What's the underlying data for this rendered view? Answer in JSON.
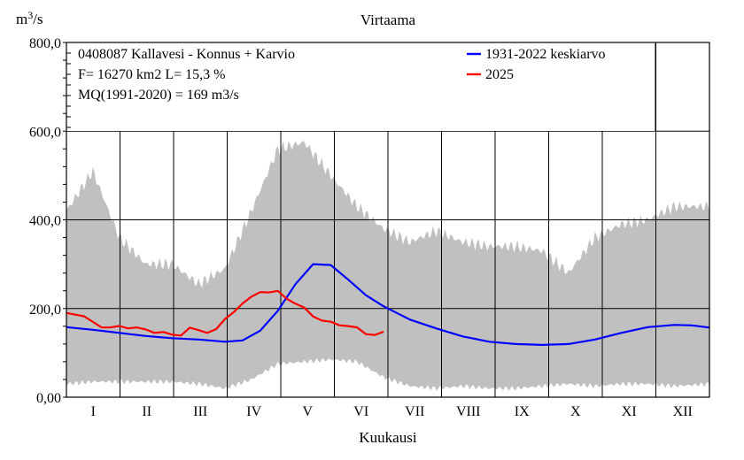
{
  "chart_data": {
    "type": "area",
    "title": "Virtaama",
    "ylabel": "m3/s",
    "ylabel_parts": {
      "base": "m",
      "sup": "3",
      "rest": "/s"
    },
    "xlabel": "Kuukausi",
    "ylim": [
      0,
      800
    ],
    "yticks": [
      "0,00",
      "200,0",
      "400,0",
      "600,0",
      "800,0"
    ],
    "months": [
      "I",
      "II",
      "III",
      "IV",
      "V",
      "VI",
      "VII",
      "VIII",
      "IX",
      "X",
      "XI",
      "XII"
    ],
    "grid": true,
    "info_lines": [
      "0408087 Kallavesi - Konnus + Karvio",
      "F=  16270 km2 L=  15,3 %",
      "MQ(1991-2020) = 169 m3/s"
    ],
    "legend": {
      "placement": "top-right",
      "entries": [
        {
          "label": "1931-2022 keskiarvo",
          "color": "#0000ff"
        },
        {
          "label": "2025",
          "color": "#ff0000"
        }
      ]
    },
    "range_band": {
      "color": "#c0c0c0",
      "day": [
        0,
        15,
        30,
        45,
        60,
        75,
        90,
        105,
        120,
        135,
        150,
        165,
        180,
        195,
        210,
        225,
        240,
        255,
        270,
        285,
        300,
        315,
        330,
        345,
        365
      ],
      "max": [
        420,
        510,
        360,
        300,
        300,
        255,
        290,
        420,
        560,
        575,
        500,
        430,
        380,
        350,
        375,
        350,
        340,
        340,
        330,
        280,
        360,
        390,
        400,
        430,
        430
      ],
      "min": [
        30,
        35,
        35,
        35,
        35,
        30,
        20,
        40,
        75,
        80,
        85,
        80,
        45,
        25,
        20,
        25,
        20,
        20,
        25,
        30,
        25,
        30,
        30,
        25,
        30
      ]
    },
    "series": [
      {
        "name": "1931-2022 keskiarvo",
        "color": "#0000ff",
        "x": [
          0,
          15,
          30,
          45,
          60,
          75,
          90,
          100,
          110,
          120,
          130,
          140,
          150,
          160,
          170,
          180,
          195,
          210,
          225,
          240,
          255,
          270,
          285,
          300,
          315,
          330,
          345,
          355,
          365
        ],
        "y": [
          158,
          152,
          145,
          138,
          133,
          130,
          125,
          128,
          150,
          195,
          255,
          300,
          298,
          265,
          230,
          205,
          175,
          155,
          137,
          125,
          120,
          118,
          120,
          130,
          145,
          158,
          163,
          162,
          157
        ]
      },
      {
        "name": "2025",
        "color": "#ff0000",
        "x": [
          0,
          10,
          20,
          25,
          30,
          35,
          40,
          45,
          50,
          55,
          60,
          65,
          70,
          75,
          80,
          85,
          90,
          95,
          100,
          105,
          110,
          115,
          120,
          125,
          130,
          135,
          140,
          145,
          150,
          155,
          160,
          165,
          170,
          175,
          180
        ],
        "y": [
          190,
          180,
          160,
          155,
          160,
          158,
          155,
          152,
          148,
          145,
          140,
          142,
          155,
          150,
          148,
          152,
          175,
          195,
          210,
          225,
          240,
          235,
          238,
          225,
          210,
          200,
          185,
          172,
          168,
          165,
          160,
          155,
          145,
          140,
          145
        ]
      }
    ]
  }
}
